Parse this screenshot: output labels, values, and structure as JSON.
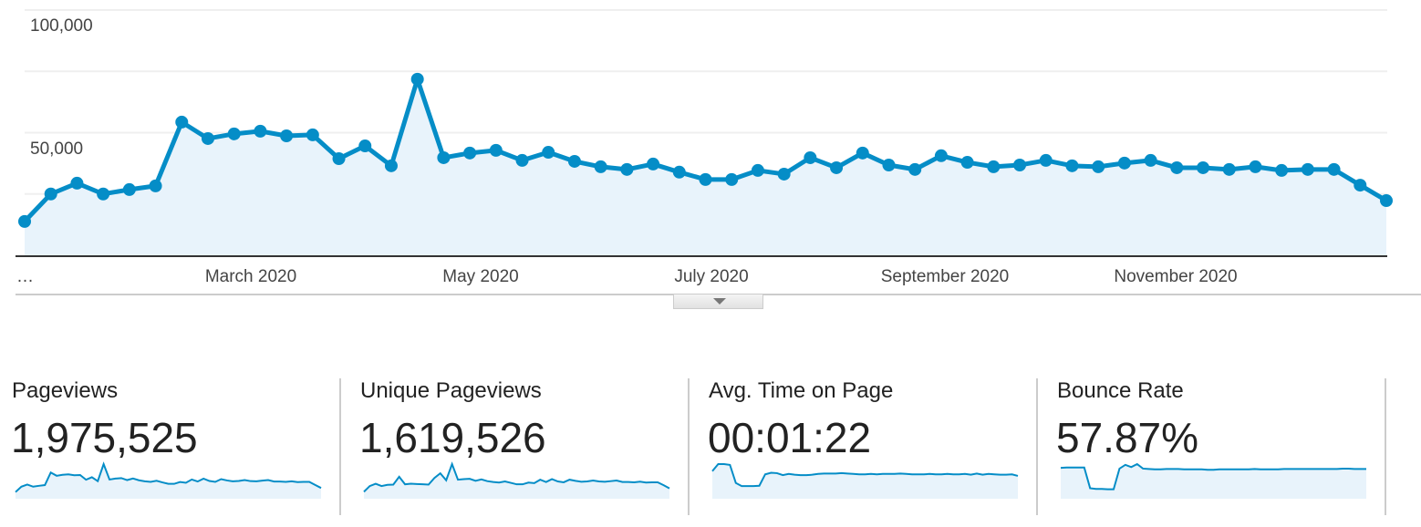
{
  "chart_data": {
    "type": "area",
    "yticks": [
      "100,000",
      "50,000"
    ],
    "ylim": [
      0,
      100000
    ],
    "grid": true,
    "xtick_labels": [
      "…",
      "March 2020",
      "May 2020",
      "July 2020",
      "September 2020",
      "November 2020"
    ],
    "values": [
      13800,
      25000,
      29400,
      25000,
      26800,
      28300,
      54300,
      47600,
      49500,
      50600,
      48700,
      49100,
      39400,
      44600,
      36500,
      71800,
      39800,
      41700,
      42800,
      38700,
      42000,
      38300,
      36100,
      35000,
      37200,
      33900,
      30900,
      30900,
      34600,
      33100,
      39800,
      35700,
      41700,
      36800,
      35000,
      40600,
      37900,
      36100,
      36800,
      38700,
      36500,
      36100,
      37600,
      38700,
      35700,
      35700,
      35000,
      36100,
      34600,
      35000,
      35000,
      28600,
      22300
    ],
    "colors": {
      "line": "#058dc7",
      "fill": "#e8f3fb",
      "grid": "#efefef",
      "axis": "#333333"
    }
  },
  "metrics": [
    {
      "label": "Pageviews",
      "value": "1,975,525",
      "sparkline": [
        13800,
        25000,
        29400,
        25000,
        26800,
        28300,
        54300,
        47600,
        49500,
        50600,
        48700,
        49100,
        39400,
        44600,
        36500,
        71800,
        39800,
        41700,
        42800,
        38700,
        42000,
        38300,
        36100,
        35000,
        37200,
        33900,
        30900,
        30900,
        34600,
        33100,
        39800,
        35700,
        41700,
        36800,
        35000,
        40600,
        37900,
        36100,
        36800,
        38700,
        36500,
        36100,
        37600,
        38700,
        35700,
        35700,
        35000,
        36100,
        34600,
        35000,
        35000,
        28600,
        22300
      ]
    },
    {
      "label": "Unique Pageviews",
      "value": "1,619,526",
      "sparkline": [
        12000,
        22000,
        26000,
        22000,
        24000,
        24500,
        38000,
        25000,
        26000,
        25500,
        25000,
        24500,
        36000,
        44000,
        32000,
        60000,
        33000,
        34000,
        34500,
        31000,
        33500,
        30500,
        29000,
        28000,
        30000,
        27500,
        25000,
        25000,
        28000,
        27000,
        33000,
        29000,
        34000,
        30000,
        28500,
        33000,
        31000,
        29500,
        30000,
        31500,
        30000,
        29500,
        30500,
        31500,
        29000,
        29000,
        28500,
        29500,
        28000,
        28500,
        28500,
        23500,
        18000
      ]
    },
    {
      "label": "Avg. Time on Page",
      "value": "00:01:22",
      "sparkline": [
        70,
        88,
        88,
        86,
        40,
        32,
        32,
        32,
        33,
        62,
        66,
        65,
        60,
        63,
        61,
        60,
        60,
        61,
        63,
        64,
        64,
        64,
        65,
        64,
        63,
        62,
        62,
        63,
        62,
        63,
        63,
        63,
        64,
        63,
        62,
        62,
        62,
        63,
        62,
        62,
        63,
        62,
        62,
        63,
        61,
        64,
        61,
        63,
        62,
        61,
        61,
        62,
        58
      ]
    },
    {
      "label": "Bounce Rate",
      "value": "57.87%",
      "sparkline": [
        82,
        83,
        83,
        83,
        83,
        28,
        26,
        26,
        25,
        25,
        80,
        90,
        84,
        92,
        80,
        79,
        78,
        78,
        79,
        79,
        79,
        78,
        78,
        78,
        78,
        77,
        77,
        78,
        78,
        78,
        78,
        78,
        78,
        79,
        78,
        78,
        78,
        78,
        79,
        79,
        79,
        79,
        79,
        79,
        79,
        79,
        79,
        79,
        80,
        80,
        79,
        79,
        79
      ]
    }
  ],
  "toggle": {
    "icon": "triangle-down-icon"
  }
}
